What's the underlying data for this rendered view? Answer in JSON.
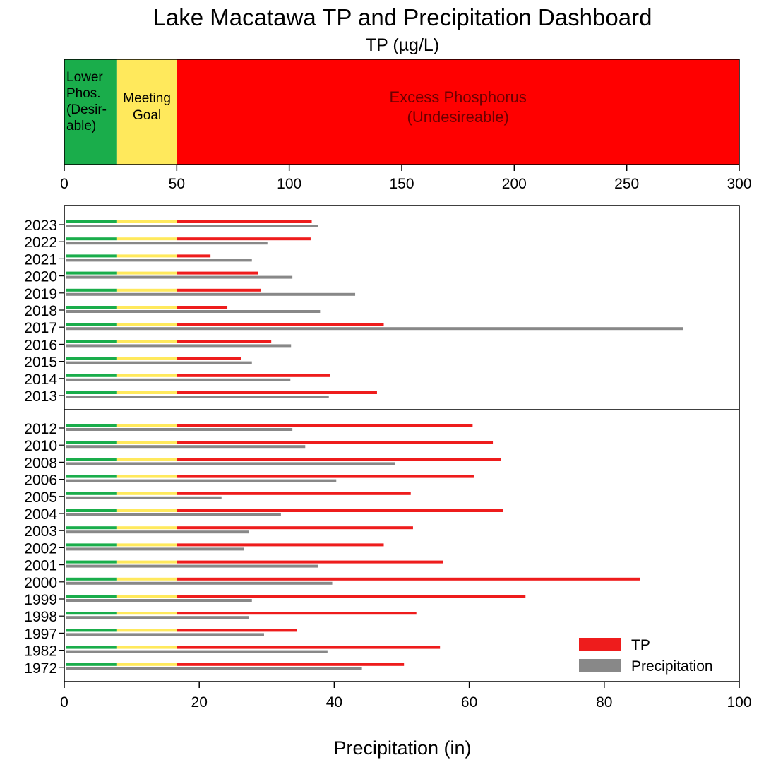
{
  "chart_data": {
    "type": "bar",
    "title": "Lake Macatawa TP and Precipitation Dashboard",
    "top_axis_label": "TP (µg/L)",
    "xlabel": "Precipitation (in)",
    "tp_axis": {
      "min": 0,
      "max": 300,
      "ticks": [
        0,
        50,
        100,
        150,
        200,
        250,
        300
      ]
    },
    "precip_axis": {
      "min": 0,
      "max": 100,
      "ticks": [
        0,
        20,
        40,
        60,
        80,
        100
      ]
    },
    "zones": [
      {
        "from": 0,
        "to": 23.5,
        "label": "Lower\nPhos.\n(Desir-\nable)",
        "color": "#1aad4b"
      },
      {
        "from": 23.5,
        "to": 50,
        "label": "Meeting\nGoal",
        "color": "#ffe95c"
      },
      {
        "from": 50,
        "to": 300,
        "label": "Excess Phosphorus\n(Undesireable)",
        "color": "#ff0000"
      }
    ],
    "panels": [
      {
        "years": [
          "2023",
          "2022",
          "2021",
          "2020",
          "2019",
          "2018",
          "2017",
          "2016",
          "2015",
          "2014",
          "2013"
        ],
        "tp": [
          110,
          109.5,
          65,
          86,
          87.5,
          72.5,
          142,
          92,
          78.5,
          118,
          139
        ],
        "precipitation": [
          37.6,
          30.1,
          27.8,
          33.8,
          43.1,
          37.9,
          91.7,
          33.6,
          27.8,
          33.5,
          39.2
        ]
      },
      {
        "years": [
          "2012",
          "2010",
          "2008",
          "2006",
          "2005",
          "2004",
          "2003",
          "2002",
          "2001",
          "2000",
          "1999",
          "1998",
          "1997",
          "1982",
          "1972"
        ],
        "tp": [
          181.5,
          190.5,
          194,
          182,
          154,
          195,
          155,
          142,
          168.5,
          256,
          205,
          156.5,
          103.5,
          167,
          151
        ],
        "precipitation": [
          33.8,
          35.7,
          49.0,
          40.3,
          23.3,
          32.1,
          27.4,
          26.6,
          37.6,
          39.7,
          27.8,
          27.4,
          29.6,
          39.0,
          44.1
        ]
      }
    ],
    "legend": [
      {
        "name": "TP",
        "color": "#ee1c1c"
      },
      {
        "name": "Precipitation",
        "color": "#888888"
      }
    ],
    "legend_position": "bottom-right",
    "grid": false
  }
}
